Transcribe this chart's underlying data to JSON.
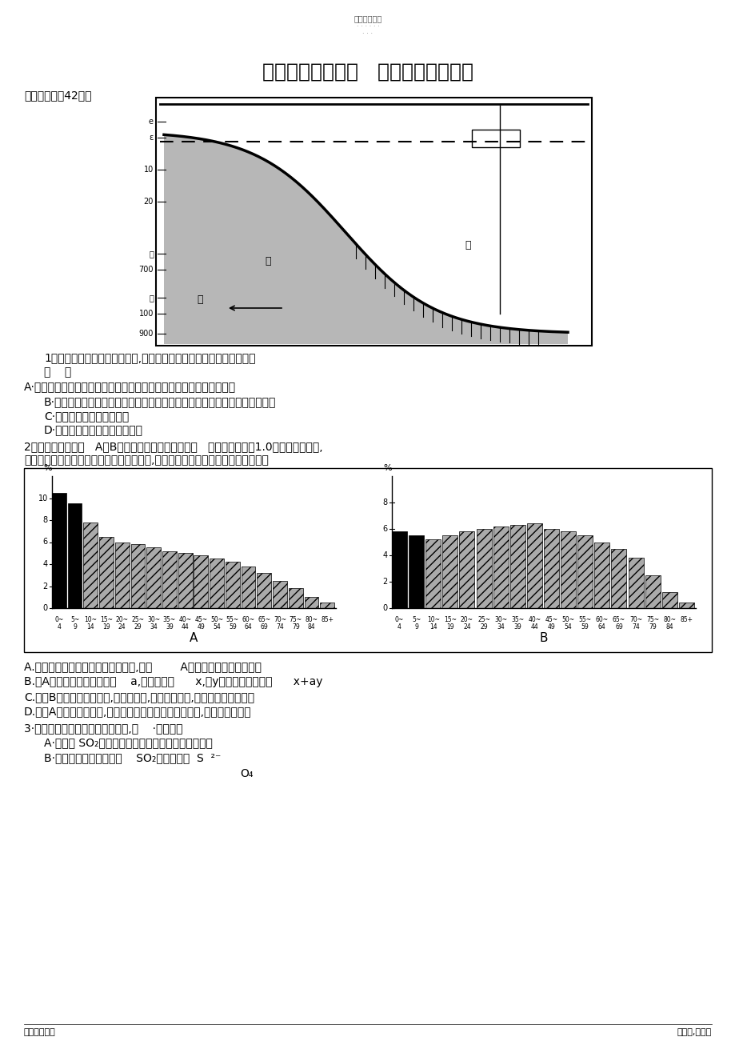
{
  "page_bg": "#ffffff",
  "title_top": "精选学习资料",
  "title_dots1": "· · · · · ·",
  "title_dots2": "· · ·",
  "main_title": "高考生物专题训练   〔七〕生态与环保",
  "section1": "一、挑选题〔42分〕",
  "q1_text": "1、上图为海底地形剖面示意图,请据图分析以下表达并选出正确选项：",
  "q1_bracket": "〔    〕",
  "optionA1": "A·该生态系统中各养分级生物所构成的能量金字塔可能显现倒置的情形",
  "optionB1": "B·丙区捕食者的特点是视力退化而其他的感觉器官发达或有着特别的发光器；",
  "optionC1": "C·只有在甲区才能找到红藻",
  "optionD1": "D·绿藻比褐藻更适合生活在乙区",
  "q2_text": "2、以下图分别表示   A、B两国人口的女性年龄组成图   〔设性别比例＝1.0〕；横轴示年龄,",
  "q2_text2": "纵轴示各年龄段女性人口占总人口的百分比,以下表达能反映人口数量变化规律的是",
  "optionA2": "A.图中涂成黑色的部分表示幼年个体,估计        A国的人口增长率一定更快",
  "optionB2": "B.设A国人口平均年增长率为    a,人口基数为      x,就y年后的人口总数为      x+ay",
  "optionC2": "C.假设B国的平均寿命增加,诞生率不变,就在和平岁月,人口增长率将会增加",
  "optionD2": "D.假设A国实施晚婚政策,但每个育龄妇女诞生人口数不变,就诞生率也不变",
  "q3_text": "3·以下关于生物圈硫循环的表达中,不    ·恰当的是",
  "optionA3": "A·大气中 SO₂可来源于化石燃料的燃烧与火山爆发等",
  "optionB3": "B·绿色植物能吸取大气中    SO₂与土壤中的  S  ²⁻",
  "optionB3_sub": "O₄",
  "footer_left": "名师归纳总结",
  "footer_right": "第１页,共６页"
}
